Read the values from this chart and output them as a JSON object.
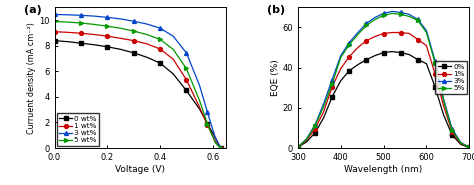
{
  "jv": {
    "voltage": [
      0.0,
      0.05,
      0.1,
      0.15,
      0.2,
      0.25,
      0.3,
      0.35,
      0.4,
      0.45,
      0.5,
      0.55,
      0.58,
      0.61,
      0.63
    ],
    "curves": {
      "0wt": [
        8.4,
        8.32,
        8.2,
        8.08,
        7.92,
        7.72,
        7.45,
        7.1,
        6.65,
        5.8,
        4.5,
        3.05,
        1.9,
        0.8,
        0.0
      ],
      "1wt": [
        9.1,
        9.05,
        8.98,
        8.88,
        8.75,
        8.58,
        8.4,
        8.15,
        7.75,
        6.95,
        5.35,
        3.2,
        1.8,
        0.5,
        0.0
      ],
      "3wt": [
        10.45,
        10.42,
        10.38,
        10.32,
        10.22,
        10.1,
        9.92,
        9.7,
        9.38,
        8.75,
        7.45,
        4.9,
        2.8,
        0.8,
        0.0
      ],
      "5wt": [
        9.9,
        9.85,
        9.78,
        9.67,
        9.53,
        9.37,
        9.15,
        8.88,
        8.5,
        7.72,
        6.22,
        3.72,
        1.9,
        0.4,
        0.0
      ]
    },
    "colors": [
      "#000000",
      "#cc0000",
      "#0044cc",
      "#009900"
    ],
    "markers": [
      "s",
      "o",
      "^",
      ">"
    ],
    "labels": [
      "0 wt%",
      "1 wt%",
      "3 wt%",
      "5 wt%"
    ],
    "xlabel": "Voltage (V)",
    "ylabel": "Curruent density (mA cm⁻²)",
    "xlim": [
      0.0,
      0.65
    ],
    "ylim": [
      0,
      11
    ],
    "yticks": [
      0,
      2,
      4,
      6,
      8,
      10
    ],
    "xticks": [
      0.0,
      0.2,
      0.4,
      0.6
    ],
    "panel_label": "(a)"
  },
  "eqe": {
    "wavelength": [
      300,
      320,
      340,
      360,
      380,
      400,
      420,
      440,
      460,
      480,
      500,
      520,
      540,
      560,
      580,
      600,
      620,
      640,
      660,
      680,
      700
    ],
    "curves": {
      "0": [
        0.5,
        3.0,
        7.5,
        15.0,
        25.5,
        33.5,
        38.5,
        41.5,
        44.0,
        46.0,
        47.5,
        48.0,
        47.5,
        46.5,
        44.0,
        42.0,
        30.5,
        16.5,
        6.5,
        1.8,
        0.3
      ],
      "1": [
        0.5,
        3.8,
        9.5,
        18.0,
        30.5,
        39.5,
        45.5,
        50.0,
        53.5,
        55.5,
        57.0,
        57.5,
        57.5,
        57.0,
        54.0,
        51.0,
        37.0,
        21.0,
        8.0,
        2.2,
        0.4
      ],
      "3": [
        0.5,
        4.5,
        11.5,
        22.0,
        34.0,
        46.0,
        52.5,
        57.5,
        62.0,
        65.0,
        67.0,
        68.0,
        67.5,
        66.5,
        64.0,
        58.5,
        43.5,
        24.5,
        9.5,
        2.8,
        0.4
      ],
      "5": [
        0.5,
        4.2,
        11.0,
        20.5,
        32.0,
        45.0,
        51.5,
        56.5,
        61.0,
        64.0,
        66.0,
        67.0,
        66.5,
        65.5,
        63.5,
        57.5,
        42.5,
        23.5,
        8.8,
        2.5,
        0.4
      ]
    },
    "colors": [
      "#000000",
      "#cc0000",
      "#0044cc",
      "#009900"
    ],
    "markers": [
      "s",
      "o",
      "^",
      ">"
    ],
    "labels": [
      "0%",
      "1%",
      "3%",
      "5%"
    ],
    "xlabel": "Wavelength (nm)",
    "ylabel": "EQE (%)",
    "xlim": [
      300,
      700
    ],
    "ylim": [
      0,
      70
    ],
    "yticks": [
      0,
      20,
      40,
      60
    ],
    "xticks": [
      300,
      400,
      500,
      600,
      700
    ],
    "panel_label": "(b)"
  }
}
